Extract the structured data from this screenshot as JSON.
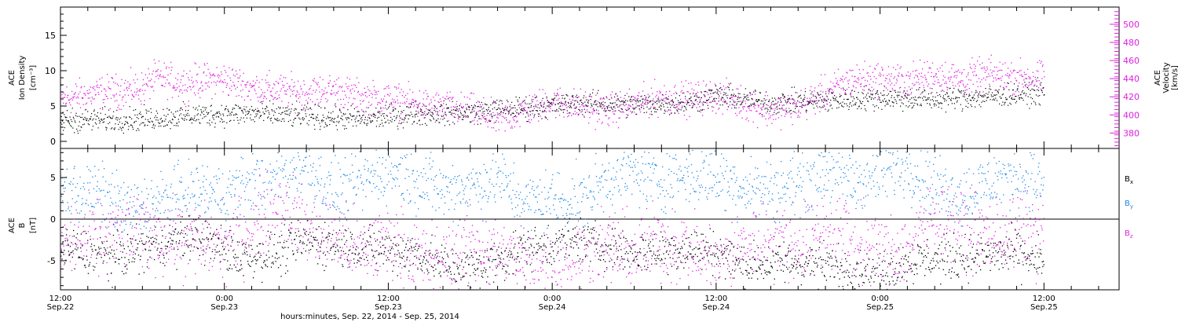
{
  "colors": {
    "black": "#000000",
    "magenta": "#e020e0",
    "blue": "#1e88e5"
  },
  "x_axis": {
    "ticks": [
      {
        "time": "Sep 22 12:00",
        "hour": 0,
        "hm": "12:00",
        "date": "Sep.22"
      },
      {
        "time": "Sep 23 00:00",
        "hour": 12,
        "hm": "0:00",
        "date": "Sep.23"
      },
      {
        "time": "Sep 23 12:00",
        "hour": 24,
        "hm": "12:00",
        "date": "Sep.23"
      },
      {
        "time": "Sep 24 00:00",
        "hour": 36,
        "hm": "0:00",
        "date": "Sep.24"
      },
      {
        "time": "Sep 24 12:00",
        "hour": 48,
        "hm": "12:00",
        "date": "Sep.24"
      },
      {
        "time": "Sep 25 00:00",
        "hour": 60,
        "hm": "0:00",
        "date": "Sep.25"
      },
      {
        "time": "Sep 25 12:00",
        "hour": 72,
        "hm": "12:00",
        "date": "Sep.25"
      }
    ],
    "range_hours": [
      0,
      77.5
    ],
    "title": "hours:minutes, Sep. 22, 2014 - Sep. 25, 2014"
  },
  "chart_data": [
    {
      "type": "scatter",
      "panel": "ion-density-velocity",
      "ylabel_left": [
        "ACE",
        "Ion Density",
        "[cm⁻³]"
      ],
      "ylabel_right": [
        "ACE",
        "Velocity",
        "[km/s]"
      ],
      "ylim_left": [
        -1,
        19
      ],
      "ylim_right": [
        363,
        519
      ],
      "yticks_left": [
        0,
        5,
        10,
        15
      ],
      "yticks_right": [
        380,
        400,
        420,
        440,
        460,
        480,
        500
      ],
      "series": [
        {
          "name": "Ion Density",
          "axis": "left",
          "color": "black",
          "trend": [
            [
              0,
              3.0
            ],
            [
              6,
              3.2
            ],
            [
              10,
              3.8
            ],
            [
              14,
              4.0
            ],
            [
              18,
              3.6
            ],
            [
              22,
              3.2
            ],
            [
              26,
              4.0
            ],
            [
              30,
              4.2
            ],
            [
              34,
              4.8
            ],
            [
              38,
              5.5
            ],
            [
              42,
              5.2
            ],
            [
              46,
              5.6
            ],
            [
              48,
              6.5
            ],
            [
              52,
              5.5
            ],
            [
              56,
              5.8
            ],
            [
              60,
              6.2
            ],
            [
              64,
              6.0
            ],
            [
              68,
              6.4
            ],
            [
              72,
              7.0
            ]
          ]
        },
        {
          "name": "Velocity",
          "axis": "right",
          "color": "magenta",
          "trend": [
            [
              0,
              418
            ],
            [
              3,
              425
            ],
            [
              6,
              430
            ],
            [
              7,
              442
            ],
            [
              9,
              435
            ],
            [
              10,
              438
            ],
            [
              12,
              440
            ],
            [
              14,
              430
            ],
            [
              18,
              425
            ],
            [
              20,
              428
            ],
            [
              22,
              420
            ],
            [
              24,
              418
            ],
            [
              27,
              410
            ],
            [
              30,
              405
            ],
            [
              32,
              395
            ],
            [
              34,
              405
            ],
            [
              36,
              415
            ],
            [
              38,
              410
            ],
            [
              40,
              405
            ],
            [
              42,
              412
            ],
            [
              44,
              420
            ],
            [
              46,
              418
            ],
            [
              48,
              422
            ],
            [
              52,
              405
            ],
            [
              54,
              410
            ],
            [
              56,
              425
            ],
            [
              58,
              440
            ],
            [
              60,
              440
            ],
            [
              62,
              438
            ],
            [
              64,
              445
            ],
            [
              66,
              440
            ],
            [
              68,
              445
            ],
            [
              72,
              440
            ]
          ]
        }
      ]
    },
    {
      "type": "scatter",
      "panel": "imf-components",
      "ylabel_left": [
        "ACE",
        "B",
        "[nT]"
      ],
      "ylim": [
        -8.5,
        8.5
      ],
      "yticks": [
        -5,
        0,
        5
      ],
      "zero_line": true,
      "legend_position": "right",
      "series": [
        {
          "name": "Bx",
          "label_main": "B",
          "label_sub": "x",
          "color": "black",
          "trend": [
            [
              0,
              -3.5
            ],
            [
              4,
              -4.5
            ],
            [
              7,
              -3.0
            ],
            [
              10,
              -2.0
            ],
            [
              13,
              -4.5
            ],
            [
              16,
              -4.0
            ],
            [
              18,
              -2.5
            ],
            [
              20,
              -3.0
            ],
            [
              23,
              -3.5
            ],
            [
              26,
              -4.0
            ],
            [
              28,
              -5.5
            ],
            [
              30,
              -6.0
            ],
            [
              34,
              -3.5
            ],
            [
              38,
              -2.5
            ],
            [
              42,
              -4.0
            ],
            [
              46,
              -3.5
            ],
            [
              48,
              -3.8
            ],
            [
              50,
              -5.5
            ],
            [
              54,
              -5.0
            ],
            [
              58,
              -6.0
            ],
            [
              60,
              -6.5
            ],
            [
              62,
              -5.0
            ],
            [
              66,
              -4.5
            ],
            [
              70,
              -4.0
            ],
            [
              72,
              -5.5
            ]
          ]
        },
        {
          "name": "By",
          "label_main": "B",
          "label_sub": "y",
          "color": "blue",
          "trend": [
            [
              0,
              3.5
            ],
            [
              3,
              3.0
            ],
            [
              5,
              1.0
            ],
            [
              8,
              2.5
            ],
            [
              10,
              3.5
            ],
            [
              12,
              3.0
            ],
            [
              14,
              4.5
            ],
            [
              16,
              5.5
            ],
            [
              18,
              6.5
            ],
            [
              20,
              3.0
            ],
            [
              22,
              4.5
            ],
            [
              24,
              6.0
            ],
            [
              26,
              5.0
            ],
            [
              28,
              3.5
            ],
            [
              30,
              4.0
            ],
            [
              32,
              5.0
            ],
            [
              34,
              2.0
            ],
            [
              36,
              2.5
            ],
            [
              38,
              2.0
            ],
            [
              40,
              5.0
            ],
            [
              42,
              5.5
            ],
            [
              44,
              4.5
            ],
            [
              46,
              5.5
            ],
            [
              48,
              5.0
            ],
            [
              50,
              4.0
            ],
            [
              52,
              3.5
            ],
            [
              54,
              4.5
            ],
            [
              56,
              6.0
            ],
            [
              58,
              4.5
            ],
            [
              60,
              5.5
            ],
            [
              62,
              6.5
            ],
            [
              64,
              4.0
            ],
            [
              66,
              3.0
            ],
            [
              68,
              4.5
            ],
            [
              70,
              5.5
            ],
            [
              72,
              4.0
            ]
          ]
        },
        {
          "name": "Bz",
          "label_main": "B",
          "label_sub": "z",
          "color": "magenta",
          "trend": [
            [
              0,
              -3.0
            ],
            [
              3,
              -2.0
            ],
            [
              6,
              -1.5
            ],
            [
              9,
              -2.5
            ],
            [
              12,
              -3.0
            ],
            [
              14,
              -1.0
            ],
            [
              16,
              2.0
            ],
            [
              18,
              -1.0
            ],
            [
              20,
              -2.0
            ],
            [
              22,
              -4.0
            ],
            [
              24,
              -2.5
            ],
            [
              26,
              -4.5
            ],
            [
              28,
              -5.0
            ],
            [
              30,
              -3.0
            ],
            [
              32,
              -4.0
            ],
            [
              34,
              -5.5
            ],
            [
              36,
              -6.0
            ],
            [
              38,
              -4.5
            ],
            [
              40,
              -3.5
            ],
            [
              42,
              -4.0
            ],
            [
              44,
              -2.5
            ],
            [
              46,
              -3.5
            ],
            [
              48,
              -5.5
            ],
            [
              50,
              -3.0
            ],
            [
              52,
              -2.0
            ],
            [
              54,
              -3.0
            ],
            [
              56,
              -1.0
            ],
            [
              58,
              -2.5
            ],
            [
              60,
              -4.0
            ],
            [
              62,
              -3.5
            ],
            [
              64,
              0.5
            ],
            [
              66,
              -1.0
            ],
            [
              68,
              -2.0
            ],
            [
              70,
              -1.5
            ],
            [
              72,
              -1.5
            ]
          ]
        }
      ]
    }
  ]
}
